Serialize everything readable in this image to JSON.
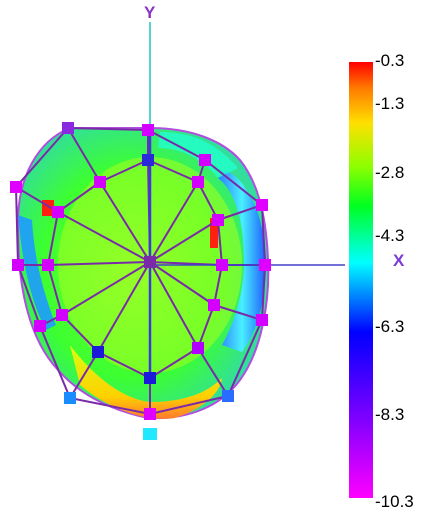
{
  "axes": {
    "y_label": "Y",
    "x_label": "X",
    "y_color": "#8a33c7",
    "x_color": "#7a3ad8"
  },
  "colorbar": {
    "ticks": [
      "-0.3",
      "-1.3",
      "-2.8",
      "-4.3",
      "-6.3",
      "-8.3",
      "-10.3"
    ],
    "range": [
      -10.3,
      -0.3
    ],
    "colors": [
      "#ff0000",
      "#ff8000",
      "#ffff00",
      "#66ff00",
      "#00ff00",
      "#00ffff",
      "#0000ff",
      "#8000ff",
      "#ff00ff"
    ]
  },
  "mesh": {
    "node_color": "#c400ff",
    "edge_color": "#7a2aa8",
    "center_node_color": "#2a2ad8"
  }
}
